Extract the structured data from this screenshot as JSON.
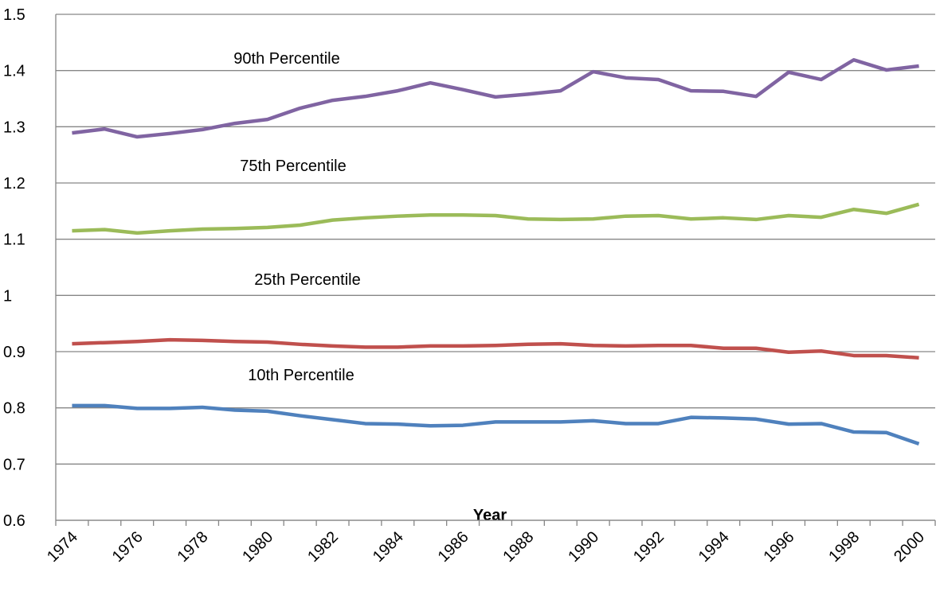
{
  "chart_data": {
    "type": "line",
    "x_label": "Year",
    "categories": [
      "1974",
      null,
      "1976",
      null,
      "1978",
      null,
      "1980",
      null,
      "1982",
      null,
      "1984",
      null,
      "1986",
      null,
      "1988",
      null,
      "1990",
      null,
      "1992",
      null,
      "1994",
      null,
      "1996",
      null,
      "1998",
      null,
      "2000"
    ],
    "series": [
      {
        "name": "90th Percentile",
        "color": "#8064a2",
        "values": [
          1.289,
          1.296,
          1.282,
          1.288,
          1.295,
          1.306,
          1.313,
          1.333,
          1.347,
          1.354,
          1.364,
          1.378,
          1.366,
          1.353,
          1.358,
          1.364,
          1.398,
          1.387,
          1.384,
          1.364,
          1.363,
          1.354,
          1.397,
          1.384,
          1.419,
          1.401,
          1.408
        ]
      },
      {
        "name": "75th Percentile",
        "color": "#9bbb59",
        "values": [
          1.115,
          1.117,
          1.111,
          1.115,
          1.118,
          1.119,
          1.121,
          1.125,
          1.134,
          1.138,
          1.141,
          1.143,
          1.143,
          1.142,
          1.136,
          1.135,
          1.136,
          1.141,
          1.142,
          1.136,
          1.138,
          1.135,
          1.142,
          1.139,
          1.153,
          1.146,
          1.162
        ]
      },
      {
        "name": "25th Percentile",
        "color": "#c0504d",
        "values": [
          0.914,
          0.916,
          0.918,
          0.921,
          0.92,
          0.918,
          0.917,
          0.913,
          0.91,
          0.908,
          0.908,
          0.91,
          0.91,
          0.911,
          0.913,
          0.914,
          0.911,
          0.91,
          0.911,
          0.911,
          0.906,
          0.906,
          0.899,
          0.901,
          0.893,
          0.893,
          0.889
        ]
      },
      {
        "name": "10th Percentile",
        "color": "#4f81bd",
        "values": [
          0.804,
          0.804,
          0.799,
          0.799,
          0.801,
          0.796,
          0.794,
          0.786,
          0.779,
          0.772,
          0.771,
          0.768,
          0.769,
          0.775,
          0.775,
          0.775,
          0.777,
          0.772,
          0.772,
          0.783,
          0.782,
          0.78,
          0.771,
          0.772,
          0.757,
          0.756,
          0.736
        ]
      }
    ],
    "ylim": [
      0.6,
      1.5
    ],
    "yticks": [
      0.6,
      0.7,
      0.8,
      0.9,
      1,
      1.1,
      1.2,
      1.3,
      1.4,
      1.5
    ],
    "grid": true
  }
}
